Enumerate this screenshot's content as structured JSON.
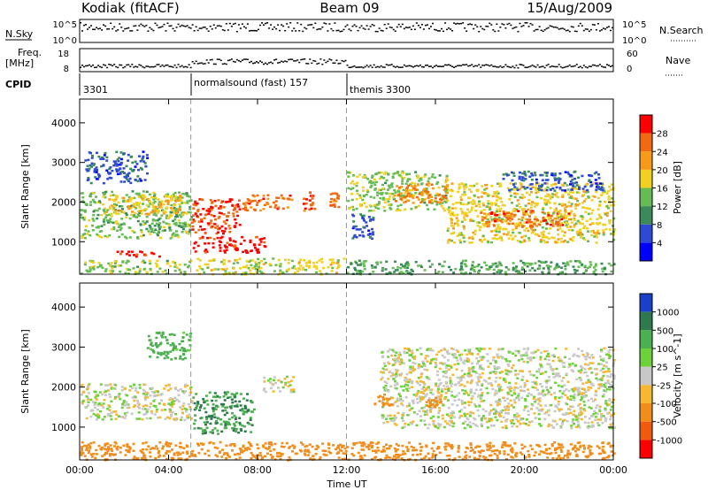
{
  "header": {
    "station": "Kodiak (fitACF)",
    "beam": "Beam 09",
    "date": "15/Aug/2009"
  },
  "strip": {
    "nsky_label": "N.Sky",
    "nsky_ticks": [
      "10^5",
      "10^0"
    ],
    "nsearch_label": "N.Search",
    "nsearch_ticks": [
      "10^5",
      "10^0"
    ],
    "freq_label_1": "Freq.",
    "freq_label_2": "[MHz]",
    "freq_ticks": [
      "18",
      "8"
    ],
    "nave_label": "Nave",
    "nave_ticks": [
      "60",
      "0"
    ],
    "cpid_label": "CPID",
    "cpid_segments": [
      {
        "label": "3301",
        "start_hour": 0,
        "end_hour": 5.0
      },
      {
        "label": "normalsound (fast) 157",
        "start_hour": 5.0,
        "end_hour": 12.0
      },
      {
        "label": "themis 3300",
        "start_hour": 12.0,
        "end_hour": 24
      }
    ]
  },
  "axes": {
    "x_ticks": [
      "00:00",
      "04:00",
      "08:00",
      "12:00",
      "16:00",
      "20:00",
      "00:00"
    ],
    "x_tick_hours": [
      0,
      4,
      8,
      12,
      16,
      20,
      24
    ],
    "xlabel": "Time UT",
    "y_ticks": [
      "1000",
      "2000",
      "3000",
      "4000"
    ],
    "y_tick_values": [
      1000,
      2000,
      3000,
      4000
    ],
    "ylabel": "Slant Range [km]",
    "ylim": [
      180,
      4600
    ]
  },
  "power_colorbar": {
    "label": "Power [dB]",
    "ticks": [
      "4",
      "8",
      "12",
      "16",
      "20",
      "24",
      "28"
    ],
    "colors": [
      "#0000ff",
      "#2f4ad2",
      "#3a8a5a",
      "#66bb55",
      "#f0d020",
      "#f79a1a",
      "#ef6a10",
      "#ff0000"
    ]
  },
  "velocity_colorbar": {
    "label": "Velocity [m s^-1]",
    "ticks": [
      "1000",
      "500",
      "100",
      "25",
      "-25",
      "-100",
      "-500",
      "-1000"
    ],
    "colors": [
      "#1a3fc8",
      "#2e7a4e",
      "#4caf50",
      "#6cd13a",
      "#c8c8c8",
      "#f7b733",
      "#f28c1a",
      "#ef5a10",
      "#ff0000"
    ]
  },
  "chart_data": [
    {
      "type": "heatmap",
      "panel": "power",
      "x_unit": "hour UT",
      "y_unit": "km",
      "value_unit": "dB",
      "clim": [
        0,
        30
      ],
      "regions": [
        {
          "t0": 0.0,
          "t1": 5.0,
          "r0": 1100,
          "r1": 2300,
          "value": 13
        },
        {
          "t0": 1.0,
          "t1": 4.8,
          "r0": 1700,
          "r1": 2200,
          "value": 18
        },
        {
          "t0": 0.2,
          "t1": 3.0,
          "r0": 2500,
          "r1": 3300,
          "value": 6
        },
        {
          "t0": 0.0,
          "t1": 5.0,
          "r0": 200,
          "r1": 550,
          "value": 14
        },
        {
          "t0": 1.6,
          "t1": 3.6,
          "r0": 650,
          "r1": 780,
          "value": 27
        },
        {
          "t0": 5.0,
          "t1": 7.2,
          "r0": 1200,
          "r1": 2100,
          "value": 26
        },
        {
          "t0": 5.0,
          "t1": 8.3,
          "r0": 750,
          "r1": 1150,
          "value": 28
        },
        {
          "t0": 5.2,
          "t1": 12.0,
          "r0": 200,
          "r1": 600,
          "value": 16
        },
        {
          "t0": 7.3,
          "t1": 9.5,
          "r0": 1800,
          "r1": 2200,
          "value": 24
        },
        {
          "t0": 10.0,
          "t1": 10.6,
          "r0": 1800,
          "r1": 2300,
          "value": 25
        },
        {
          "t0": 11.2,
          "t1": 11.6,
          "r0": 1900,
          "r1": 2250,
          "value": 24
        },
        {
          "t0": 12.0,
          "t1": 16.5,
          "r0": 1800,
          "r1": 2800,
          "value": 14
        },
        {
          "t0": 12.2,
          "t1": 13.2,
          "r0": 1100,
          "r1": 1800,
          "value": 6
        },
        {
          "t0": 14.0,
          "t1": 16.5,
          "r0": 2000,
          "r1": 2500,
          "value": 22
        },
        {
          "t0": 16.5,
          "t1": 24.0,
          "r0": 1000,
          "r1": 2500,
          "value": 17
        },
        {
          "t0": 18.0,
          "t1": 22.0,
          "r0": 1400,
          "r1": 1800,
          "value": 24
        },
        {
          "t0": 12.0,
          "t1": 24.0,
          "r0": 200,
          "r1": 550,
          "value": 12
        },
        {
          "t0": 19.0,
          "t1": 23.5,
          "r0": 2300,
          "r1": 2800,
          "value": 6
        }
      ]
    },
    {
      "type": "heatmap",
      "panel": "velocity",
      "x_unit": "hour UT",
      "y_unit": "km",
      "value_unit": "m/s",
      "clim": [
        -1000,
        1000
      ],
      "regions": [
        {
          "t0": 0.0,
          "t1": 5.0,
          "r0": 1200,
          "r1": 2100,
          "value": 0
        },
        {
          "t0": 3.0,
          "t1": 5.0,
          "r0": 2700,
          "r1": 3400,
          "value": 150
        },
        {
          "t0": 0.0,
          "t1": 24.0,
          "r0": 200,
          "r1": 650,
          "value": -200
        },
        {
          "t0": 5.0,
          "t1": 7.8,
          "r0": 850,
          "r1": 1900,
          "value": 500
        },
        {
          "t0": 8.2,
          "t1": 9.6,
          "r0": 1900,
          "r1": 2300,
          "value": 0
        },
        {
          "t0": 13.5,
          "t1": 24.0,
          "r0": 1000,
          "r1": 3000,
          "value": 0
        },
        {
          "t0": 13.2,
          "t1": 14.0,
          "r0": 1550,
          "r1": 1850,
          "value": -300
        },
        {
          "t0": 15.5,
          "t1": 16.2,
          "r0": 1500,
          "r1": 1800,
          "value": -300
        }
      ]
    }
  ]
}
